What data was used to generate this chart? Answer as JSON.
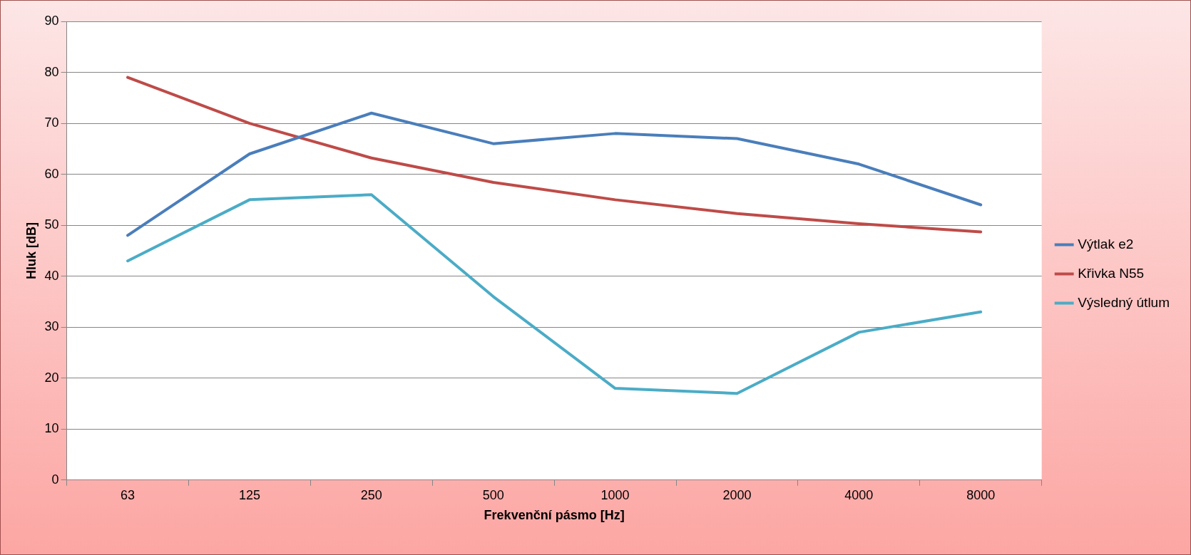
{
  "chart_data": {
    "type": "line",
    "xlabel": "Frekvenční pásmo [Hz]",
    "ylabel": "Hluk [dB]",
    "categories": [
      "63",
      "125",
      "250",
      "500",
      "1000",
      "2000",
      "4000",
      "8000"
    ],
    "series": [
      {
        "name": "Výtlak e2",
        "color": "#4a7ebb",
        "values": [
          48,
          64,
          72,
          66,
          68,
          67,
          62,
          54
        ]
      },
      {
        "name": "Křivka N55",
        "color": "#be4b48",
        "values": [
          79,
          70,
          63.2,
          58.4,
          55,
          52.3,
          50.3,
          48.7
        ]
      },
      {
        "name": "Výsledný útlum",
        "color": "#4bacc6",
        "values": [
          43,
          55,
          56,
          36,
          18,
          17,
          29,
          33
        ]
      }
    ],
    "ylim": [
      0,
      90
    ],
    "yticks": [
      0,
      10,
      20,
      30,
      40,
      50,
      60,
      70,
      80,
      90
    ],
    "grid": "y",
    "legend": "right",
    "marker": "none",
    "line_style": "solid"
  }
}
